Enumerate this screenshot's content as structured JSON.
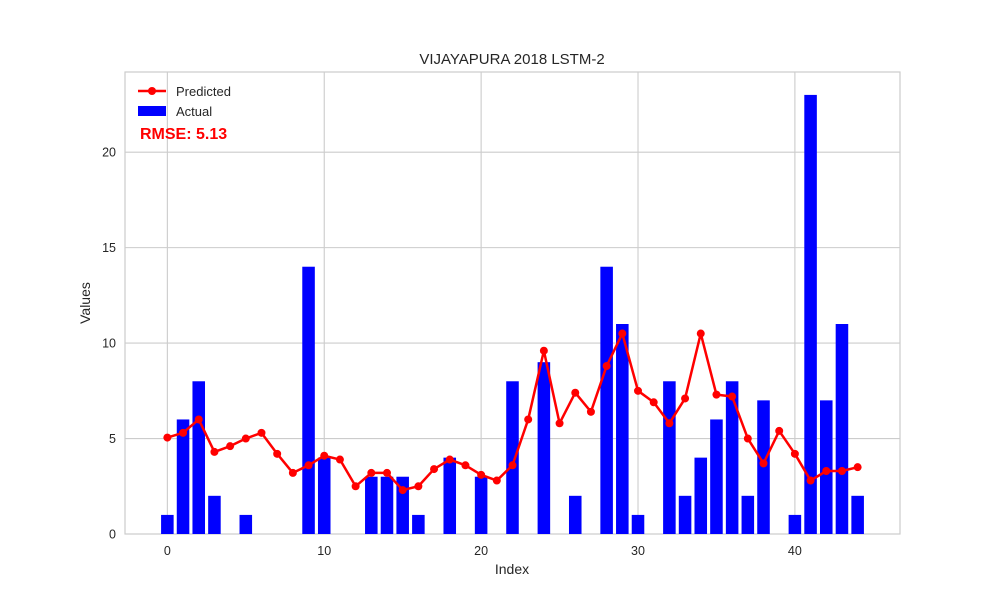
{
  "chart_data": {
    "type": "bar+line",
    "title": "VIJAYAPURA 2018 LSTM-2",
    "xlabel": "Index",
    "ylabel": "Values",
    "xlim": [
      -2.7,
      46.7
    ],
    "ylim": [
      0,
      24.2
    ],
    "xticks": [
      0,
      10,
      20,
      30,
      40
    ],
    "yticks": [
      0,
      5,
      10,
      15,
      20
    ],
    "grid": true,
    "legend_position": "top-left",
    "annotation": "RMSE: 5.13",
    "series": [
      {
        "name": "Predicted",
        "kind": "line",
        "color": "#ff0000",
        "marker": "circle",
        "values": [
          5.05,
          5.3,
          6.0,
          4.3,
          4.6,
          5.0,
          5.3,
          4.2,
          3.2,
          3.6,
          4.1,
          3.9,
          2.5,
          3.2,
          3.2,
          2.3,
          2.5,
          3.4,
          3.9,
          3.6,
          3.1,
          2.8,
          3.6,
          6.0,
          9.6,
          5.8,
          7.4,
          6.4,
          8.8,
          10.5,
          7.5,
          6.9,
          5.8,
          7.1,
          10.5,
          7.3,
          7.2,
          5.0,
          3.7,
          5.4,
          4.2,
          2.8,
          3.3,
          3.3,
          3.5
        ]
      },
      {
        "name": "Actual",
        "kind": "bar",
        "color": "#0000ff",
        "values": [
          1,
          6,
          8,
          2,
          0,
          1,
          0,
          0,
          0,
          14,
          4,
          0,
          0,
          3,
          3,
          3,
          1,
          0,
          4,
          0,
          3,
          0,
          8,
          0,
          9,
          0,
          2,
          0,
          14,
          11,
          1,
          0,
          8,
          2,
          4,
          6,
          8,
          2,
          7,
          0,
          1,
          23,
          7,
          11,
          2
        ]
      }
    ]
  }
}
